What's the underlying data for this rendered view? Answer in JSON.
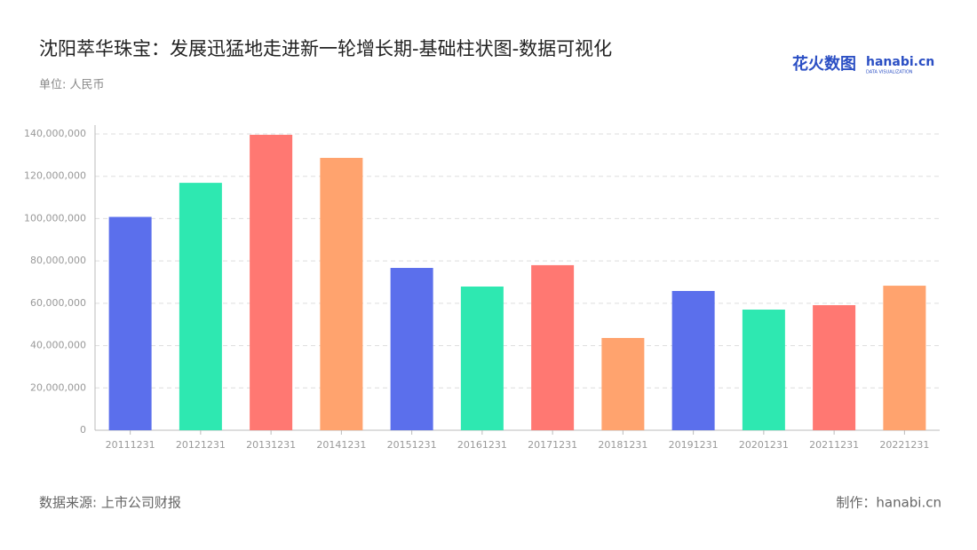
{
  "chart_data": {
    "type": "bar",
    "title": "沈阳萃华珠宝：发展迅猛地走进新一轮增长期-基础柱状图-数据可视化",
    "subtitle": "单位: 人民币",
    "source": "数据来源: 上市公司财报",
    "credit": "制作：hanabi.cn",
    "logo": {
      "cn": "花火数图",
      "en": "hanabi.cn",
      "tagline": "DATA VISUALIZATION"
    },
    "categories": [
      "20111231",
      "20121231",
      "20131231",
      "20141231",
      "20151231",
      "20161231",
      "20171231",
      "20181231",
      "20191231",
      "20201231",
      "20211231",
      "20221231"
    ],
    "values": [
      100800000,
      116900000,
      139600000,
      128700000,
      76700000,
      67900000,
      78000000,
      43600000,
      65800000,
      57000000,
      59100000,
      68300000
    ],
    "colors": [
      "#5b6fec",
      "#2ee8b1",
      "#ff7872",
      "#ffa36e",
      "#5b6fec",
      "#2ee8b1",
      "#ff7872",
      "#ffa36e",
      "#5b6fec",
      "#2ee8b1",
      "#ff7872",
      "#ffa36e"
    ],
    "ylim": [
      0,
      140000000
    ],
    "yticks": [
      0,
      {
        "value": 20000000,
        "label": "20,000,000"
      },
      {
        "value": 40000000,
        "label": "40,000,000"
      },
      {
        "value": 60000000,
        "label": "60,000,000"
      },
      {
        "value": 80000000,
        "label": "80,000,000"
      },
      {
        "value": 100000000,
        "label": "100,000,000"
      },
      {
        "value": 120000000,
        "label": "120,000,000"
      },
      {
        "value": 140000000,
        "label": "140,000,000"
      }
    ],
    "grid": true
  }
}
